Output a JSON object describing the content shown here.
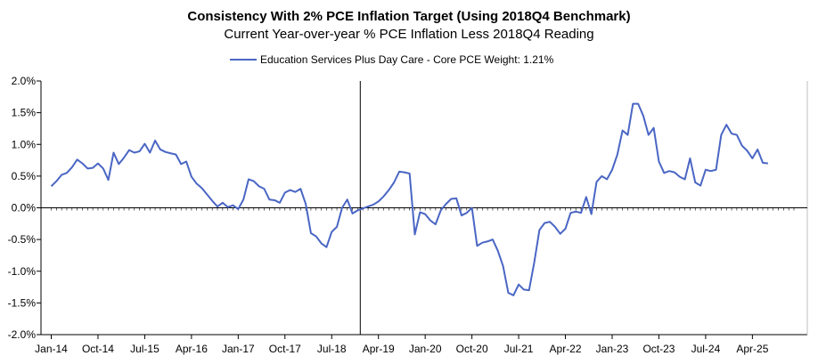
{
  "chart_data": {
    "type": "line",
    "title": "Consistency With 2% PCE Inflation Target (Using 2018Q4 Benchmark)",
    "subtitle": "Current Year-over-year % PCE Inflation Less 2018Q4 Reading",
    "xlabel": "",
    "ylabel": "",
    "ylim": [
      -2.0,
      2.0
    ],
    "y_ticks": [
      2.0,
      1.5,
      1.0,
      0.5,
      0.0,
      -0.5,
      -1.0,
      -1.5,
      -2.0
    ],
    "y_tick_labels": [
      "2.0%",
      "1.5%",
      "1.0%",
      "0.5%",
      "0.0%",
      "-0.5%",
      "-1.0%",
      "-1.5%",
      "-2.0%"
    ],
    "x_tick_labels": [
      "Jan-14",
      "Oct-14",
      "Jul-15",
      "Apr-16",
      "Jan-17",
      "Oct-17",
      "Jul-18",
      "Apr-19",
      "Jan-20",
      "Oct-20",
      "Jul-21",
      "Apr-22",
      "Jan-23",
      "Oct-23",
      "Jul-24",
      "Apr-25"
    ],
    "x_tick_month_index": [
      0,
      9,
      18,
      27,
      36,
      45,
      54,
      63,
      72,
      81,
      90,
      99,
      108,
      117,
      126,
      135
    ],
    "x_range_months": [
      0,
      143
    ],
    "benchmark_label": "2018Q4",
    "benchmark_month_index": 60,
    "legend": "top-center",
    "color": "#4a66c4",
    "series": [
      {
        "name": "Education Services Plus Day Care  - Core PCE Weight: 1.21%",
        "start": "Jan-14",
        "values": [
          0.34,
          0.42,
          0.52,
          0.55,
          0.64,
          0.76,
          0.7,
          0.62,
          0.63,
          0.7,
          0.62,
          0.44,
          0.87,
          0.69,
          0.79,
          0.91,
          0.87,
          0.89,
          1.01,
          0.87,
          1.06,
          0.92,
          0.88,
          0.86,
          0.84,
          0.69,
          0.73,
          0.49,
          0.38,
          0.31,
          0.21,
          0.11,
          0.02,
          0.08,
          0.01,
          0.04,
          -0.02,
          0.13,
          0.45,
          0.42,
          0.34,
          0.3,
          0.13,
          0.12,
          0.08,
          0.24,
          0.28,
          0.25,
          0.3,
          0.06,
          -0.4,
          -0.45,
          -0.56,
          -0.62,
          -0.38,
          -0.3,
          0.0,
          0.13,
          -0.09,
          -0.04,
          -0.01,
          0.02,
          0.05,
          0.1,
          0.18,
          0.28,
          0.4,
          0.57,
          0.56,
          0.54,
          -0.42,
          -0.07,
          -0.1,
          -0.2,
          -0.26,
          -0.04,
          0.06,
          0.14,
          0.15,
          -0.12,
          -0.08,
          0.0,
          -0.6,
          -0.55,
          -0.53,
          -0.5,
          -0.68,
          -0.92,
          -1.34,
          -1.38,
          -1.21,
          -1.29,
          -1.3,
          -0.86,
          -0.35,
          -0.24,
          -0.22,
          -0.3,
          -0.41,
          -0.33,
          -0.08,
          -0.06,
          -0.08,
          0.17,
          -0.1,
          0.41,
          0.5,
          0.45,
          0.6,
          0.84,
          1.22,
          1.15,
          1.64,
          1.64,
          1.45,
          1.15,
          1.26,
          0.73,
          0.55,
          0.58,
          0.56,
          0.49,
          0.45,
          0.78,
          0.4,
          0.35,
          0.6,
          0.58,
          0.6,
          1.15,
          1.31,
          1.17,
          1.15,
          0.98,
          0.9,
          0.78,
          0.92,
          0.71,
          0.7
        ]
      }
    ]
  }
}
